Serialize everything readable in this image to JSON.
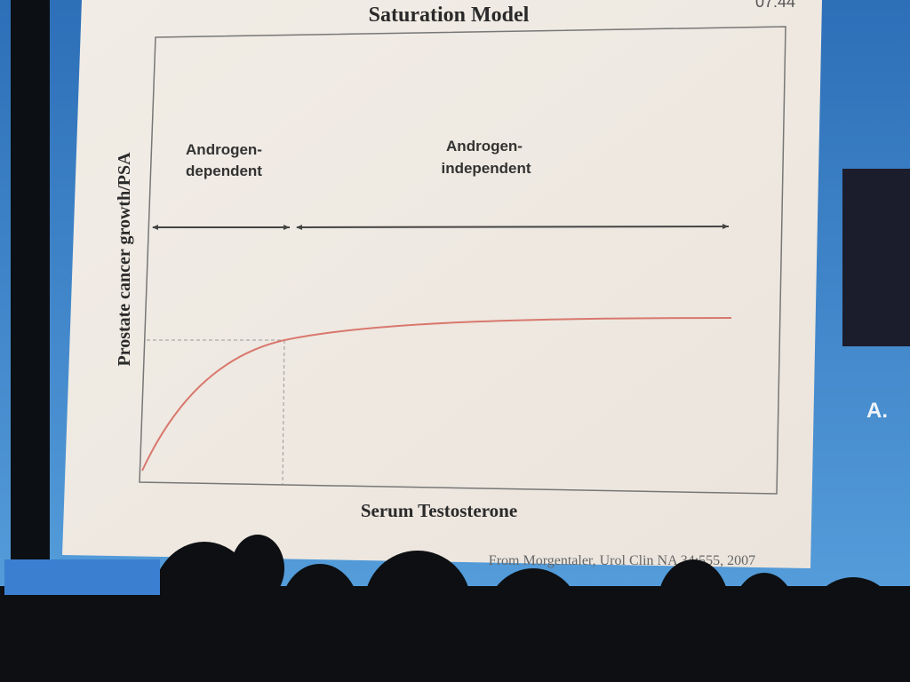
{
  "slide": {
    "title": "Saturation Model",
    "clock": "07:44",
    "y_axis_label": "Prostate cancer growth/PSA",
    "x_axis_label": "Serum Testosterone",
    "regions": [
      {
        "lines": [
          "Androgen-",
          "dependent"
        ]
      },
      {
        "lines": [
          "Androgen-",
          "independent"
        ]
      }
    ],
    "citation": "From Morgentaler, Urol Clin NA 34:555, 2007"
  },
  "side_screen": {
    "text": "A."
  }
}
